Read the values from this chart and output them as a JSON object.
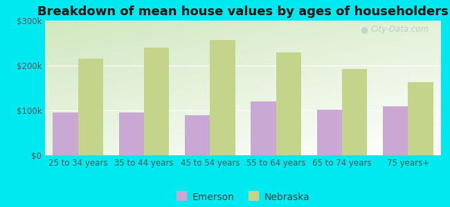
{
  "title": "Breakdown of mean house values by ages of householders",
  "categories": [
    "25 to 34 years",
    "35 to 44 years",
    "45 to 54 years",
    "55 to 64 years",
    "65 to 74 years",
    "75 years+"
  ],
  "emerson_values": [
    95000,
    95000,
    90000,
    120000,
    102000,
    110000
  ],
  "nebraska_values": [
    215000,
    240000,
    257000,
    230000,
    192000,
    163000
  ],
  "emerson_color": "#c9a8d4",
  "nebraska_color": "#c4d48a",
  "background_color": "#00e8f0",
  "ylim": [
    0,
    300000
  ],
  "yticks": [
    0,
    100000,
    200000,
    300000
  ],
  "ytick_labels": [
    "$0",
    "$100k",
    "$200k",
    "$300k"
  ],
  "bar_width": 0.38,
  "legend_labels": [
    "Emerson",
    "Nebraska"
  ],
  "title_fontsize": 13,
  "tick_fontsize": 8.5,
  "legend_fontsize": 10,
  "grid_color": "#ffffff",
  "watermark_text": "City-Data.com",
  "watermark_color": "#b8ccc8"
}
